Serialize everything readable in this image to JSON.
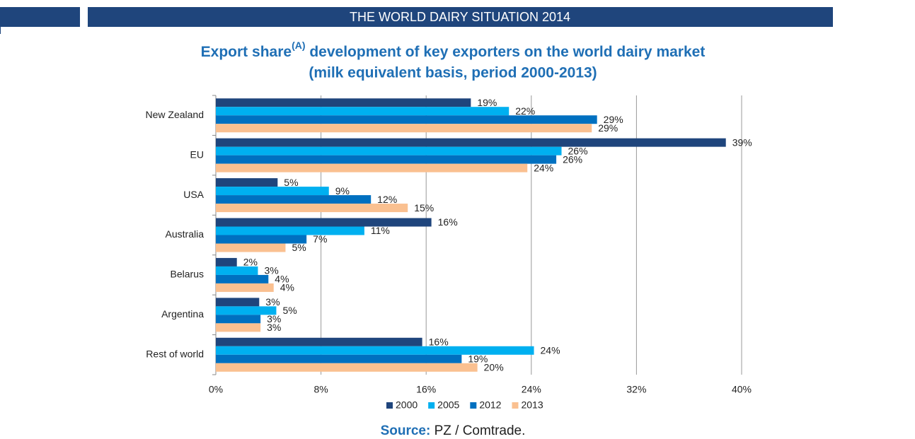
{
  "header": {
    "title": "THE WORLD DAIRY SITUATION 2014"
  },
  "chart_data": {
    "type": "hbar",
    "title": "Export share",
    "title_superscript": "(A)",
    "title_rest": " development of key exporters on the world dairy market",
    "subtitle": "(milk equivalent basis, period 2000-2013)",
    "categories": [
      "New Zealand",
      "EU",
      "USA",
      "Australia",
      "Belarus",
      "Argentina",
      "Rest of world"
    ],
    "series": [
      {
        "name": "2000",
        "color": "#1f457c",
        "values": [
          19.4,
          38.8,
          4.7,
          16.4,
          1.6,
          3.3,
          15.7
        ],
        "value_labels": [
          "19%",
          "39%",
          "5%",
          "16%",
          "2%",
          "3%",
          "16%"
        ]
      },
      {
        "name": "2005",
        "color": "#00b0f0",
        "values": [
          22.3,
          26.3,
          8.6,
          11.3,
          3.2,
          4.6,
          24.2
        ],
        "value_labels": [
          "22%",
          "26%",
          "9%",
          "11%",
          "3%",
          "5%",
          "24%"
        ]
      },
      {
        "name": "2012",
        "color": "#0070c0",
        "values": [
          29.0,
          25.9,
          11.8,
          6.9,
          4.0,
          3.4,
          18.7
        ],
        "value_labels": [
          "29%",
          "26%",
          "12%",
          "7%",
          "4%",
          "3%",
          "19%"
        ]
      },
      {
        "name": "2013",
        "color": "#fac090",
        "values": [
          28.6,
          23.7,
          14.6,
          5.3,
          4.4,
          3.4,
          19.9
        ],
        "value_labels": [
          "29%",
          "24%",
          "15%",
          "5%",
          "4%",
          "3%",
          "20%"
        ]
      }
    ],
    "xlim": [
      0,
      40
    ],
    "xticks": [
      {
        "value": 0,
        "label": "0%"
      },
      {
        "value": 8,
        "label": "8%"
      },
      {
        "value": 16,
        "label": "16%"
      },
      {
        "value": 24,
        "label": "24%"
      },
      {
        "value": 32,
        "label": "32%"
      },
      {
        "value": 40,
        "label": "40%"
      }
    ],
    "grid": true,
    "legend": "bottom"
  },
  "source": {
    "label": "Source:",
    "text": " PZ / Comtrade."
  }
}
